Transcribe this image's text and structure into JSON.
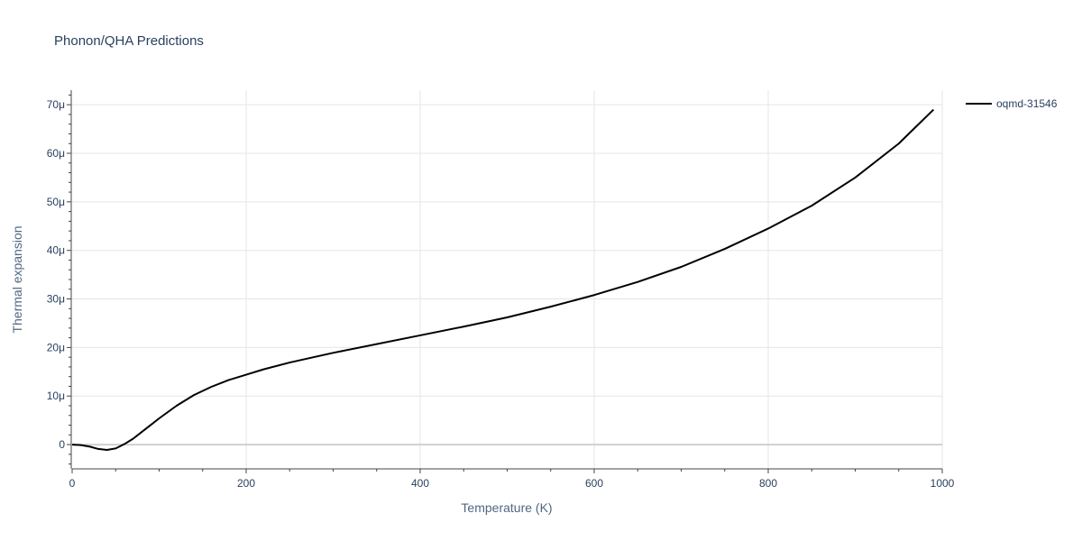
{
  "chart_data": {
    "type": "line",
    "title": "Phonon/QHA Predictions",
    "xlabel": "Temperature (K)",
    "ylabel": "Thermal expansion",
    "xlim": [
      0,
      1000
    ],
    "ylim": [
      -5,
      73
    ],
    "y_unit_suffix": "μ",
    "xticks": [
      0,
      200,
      400,
      600,
      800,
      1000
    ],
    "yticks": [
      0,
      10,
      20,
      30,
      40,
      50,
      60,
      70
    ],
    "grid": true,
    "legend_position": "top-right",
    "colors": {
      "line": "#000000",
      "grid": "#e5e5e5",
      "zeroline": "#d0d0d0",
      "text": "#2a3f5f"
    },
    "series": [
      {
        "name": "oqmd-31546",
        "x": [
          0,
          10,
          20,
          30,
          40,
          50,
          60,
          70,
          80,
          90,
          100,
          120,
          140,
          160,
          180,
          200,
          220,
          250,
          300,
          350,
          400,
          450,
          500,
          550,
          600,
          650,
          700,
          750,
          800,
          850,
          900,
          950,
          990
        ],
        "y": [
          0,
          -0.1,
          -0.4,
          -0.9,
          -1.1,
          -0.8,
          0.1,
          1.2,
          2.6,
          4.0,
          5.4,
          8.0,
          10.2,
          11.9,
          13.3,
          14.4,
          15.5,
          16.9,
          18.9,
          20.7,
          22.5,
          24.3,
          26.2,
          28.4,
          30.8,
          33.5,
          36.6,
          40.3,
          44.5,
          49.2,
          55.0,
          62.0,
          69.0
        ]
      }
    ]
  }
}
